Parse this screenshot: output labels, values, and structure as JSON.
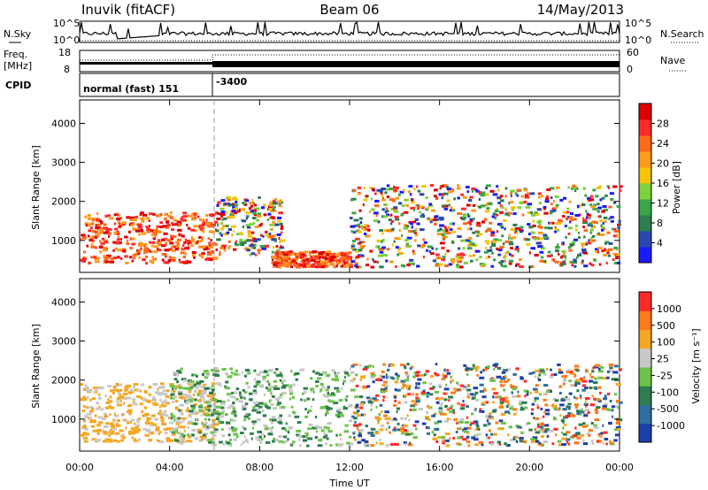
{
  "header": {
    "station": "Inuvik (fitACF)",
    "beam": "Beam 06",
    "date": "14/May/2013"
  },
  "labels": {
    "nsky": "N.Sky",
    "nsearch": "N.Search",
    "freq": "Freq.",
    "freq_unit": "[MHz]",
    "nave": "Nave",
    "cpid": "CPID",
    "cpid_mode": "normal (fast) 151",
    "cpid_value": "-3400",
    "xlabel": "Time UT",
    "ylabel": "Slant Range [km]",
    "power_label": "Power [dB]",
    "velocity_label": "Velocity [m s⁻¹]"
  },
  "noise_axis": {
    "left_ticks": [
      "10^5",
      "10^0"
    ],
    "right_ticks": [
      "10^5",
      "10^0"
    ]
  },
  "freq_axis": {
    "left_ticks": [
      "18",
      "8"
    ],
    "right_ticks": [
      "60",
      "0"
    ]
  },
  "chart_data": [
    {
      "type": "heatmap",
      "title": "",
      "xlabel": "Time UT",
      "ylabel": "Slant Range [km]",
      "x_ticks": [
        "00:00",
        "04:00",
        "08:00",
        "12:00",
        "16:00",
        "20:00",
        "00:00"
      ],
      "xlim_hours": [
        0,
        24
      ],
      "y_ticks": [
        1000,
        2000,
        3000,
        4000
      ],
      "ylim_km": [
        180,
        4600
      ],
      "colorbar": {
        "label": "Power [dB]",
        "ticks": [
          4,
          8,
          12,
          16,
          20,
          24,
          28
        ],
        "colors": [
          "#1a1aff",
          "#2a48b0",
          "#2e7d4f",
          "#3aa64a",
          "#7cd23c",
          "#f5c400",
          "#ff9a1a",
          "#ff6a1a",
          "#ff2a2a",
          "#dd0000"
        ]
      },
      "scatter_regions": [
        {
          "t0": 0.0,
          "t1": 6.0,
          "r0": 400,
          "r1": 1700,
          "level": "high"
        },
        {
          "t0": 6.0,
          "t1": 9.0,
          "r0": 600,
          "r1": 2100,
          "level": "mixed"
        },
        {
          "t0": 8.5,
          "t1": 12.0,
          "r0": 300,
          "r1": 700,
          "level": "high"
        },
        {
          "t0": 12.0,
          "t1": 24.0,
          "r0": 300,
          "r1": 2400,
          "level": "mixed"
        }
      ]
    },
    {
      "type": "heatmap",
      "title": "",
      "xlabel": "Time UT",
      "ylabel": "Slant Range [km]",
      "x_ticks": [
        "00:00",
        "04:00",
        "08:00",
        "12:00",
        "16:00",
        "20:00",
        "00:00"
      ],
      "xlim_hours": [
        0,
        24
      ],
      "y_ticks": [
        1000,
        2000,
        3000,
        4000
      ],
      "ylim_km": [
        180,
        4600
      ],
      "colorbar": {
        "label": "Velocity [m s⁻¹]",
        "ticks": [
          1000,
          500,
          100,
          25,
          -25,
          -100,
          -500,
          -1000
        ],
        "colors": [
          "#1e3fa8",
          "#2f6fa0",
          "#2e7d4f",
          "#6cc24a",
          "#c8c8c8",
          "#f5a623",
          "#ff7a1a",
          "#ff2a2a"
        ]
      },
      "scatter_regions": [
        {
          "t0": 0.0,
          "t1": 6.0,
          "r0": 400,
          "r1": 1900,
          "level": "orange"
        },
        {
          "t0": 4.0,
          "t1": 12.0,
          "r0": 300,
          "r1": 2300,
          "level": "green-grey"
        },
        {
          "t0": 12.0,
          "t1": 24.0,
          "r0": 300,
          "r1": 2400,
          "level": "mixed"
        }
      ]
    }
  ]
}
